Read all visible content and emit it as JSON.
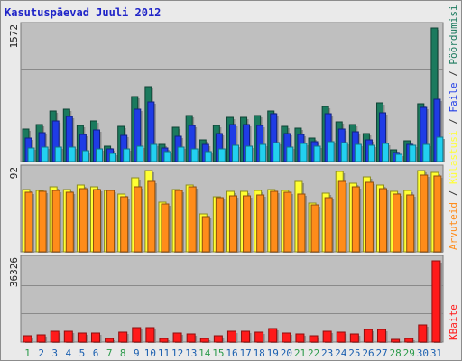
{
  "title": "Kasutuspäevad Juuli 2012",
  "colors": {
    "background": "#bfbfbf",
    "hits_top": "#1b7a5e",
    "files": "#1f3ce6",
    "pages": "#22d0f0",
    "visits": "#ffff33",
    "sites": "#ff8c1a",
    "kbytes": "#ff1a1a",
    "weekday_label": "#1a5fb0",
    "weekend_label": "#2a9a4a"
  },
  "chart_data": [
    {
      "type": "bar",
      "panel": "top",
      "ymax_label": "1572",
      "ymax": 1572,
      "legend": [
        "Pöördumisi",
        "Faile",
        "Lehekülgi"
      ],
      "categories": [
        "1",
        "2",
        "3",
        "4",
        "5",
        "6",
        "7",
        "8",
        "9",
        "10",
        "11",
        "12",
        "13",
        "14",
        "15",
        "16",
        "17",
        "18",
        "19",
        "20",
        "21",
        "22",
        "23",
        "24",
        "25",
        "26",
        "27",
        "28",
        "29",
        "30",
        "31"
      ],
      "weekend": [
        "1",
        "7",
        "8",
        "14",
        "15",
        "21",
        "22",
        "28",
        "29"
      ],
      "series": [
        {
          "name": "Pöördumisi",
          "values": [
            380,
            440,
            590,
            620,
            420,
            480,
            180,
            410,
            760,
            880,
            200,
            400,
            540,
            250,
            420,
            520,
            520,
            540,
            590,
            410,
            390,
            280,
            650,
            470,
            440,
            330,
            690,
            140,
            240,
            680,
            1572
          ]
        },
        {
          "name": "Faile",
          "values": [
            280,
            340,
            480,
            530,
            320,
            370,
            150,
            310,
            620,
            700,
            160,
            300,
            420,
            200,
            330,
            440,
            440,
            430,
            560,
            330,
            320,
            230,
            560,
            380,
            350,
            260,
            570,
            110,
            200,
            640,
            730
          ]
        },
        {
          "name": "Lehekülgi",
          "values": [
            160,
            170,
            170,
            170,
            130,
            150,
            100,
            150,
            180,
            200,
            120,
            170,
            150,
            120,
            150,
            190,
            180,
            200,
            220,
            170,
            210,
            180,
            230,
            220,
            200,
            190,
            210,
            80,
            190,
            200,
            290
          ]
        }
      ]
    },
    {
      "type": "bar",
      "panel": "middle",
      "ymax_label": "92",
      "ymax": 92,
      "legend": [
        "Külastusi",
        "Arvuteid"
      ],
      "series": [
        {
          "name": "Külastusi",
          "values": [
            71,
            70,
            74,
            71,
            76,
            74,
            70,
            65,
            84,
            92,
            56,
            71,
            76,
            43,
            62,
            68,
            68,
            69,
            71,
            70,
            80,
            55,
            66,
            91,
            78,
            85,
            76,
            68,
            70,
            92,
            90
          ]
        },
        {
          "name": "Arvuteid",
          "values": [
            67,
            68,
            70,
            67,
            72,
            71,
            69,
            62,
            74,
            80,
            54,
            69,
            74,
            40,
            61,
            63,
            63,
            64,
            68,
            67,
            65,
            53,
            61,
            80,
            74,
            79,
            72,
            65,
            64,
            87,
            86
          ]
        }
      ]
    },
    {
      "type": "bar",
      "panel": "bottom",
      "ymax_label": "36326",
      "ymax": 36326,
      "legend": [
        "KBaite"
      ],
      "series": [
        {
          "name": "KBaite",
          "values": [
            3000,
            3200,
            4900,
            4800,
            3900,
            4100,
            1800,
            4600,
            6300,
            6500,
            1700,
            4100,
            3800,
            1600,
            2700,
            4800,
            4700,
            4600,
            5900,
            4100,
            3800,
            2800,
            4800,
            4600,
            3800,
            5600,
            5500,
            1400,
            1800,
            7600,
            36326
          ]
        }
      ]
    }
  ]
}
